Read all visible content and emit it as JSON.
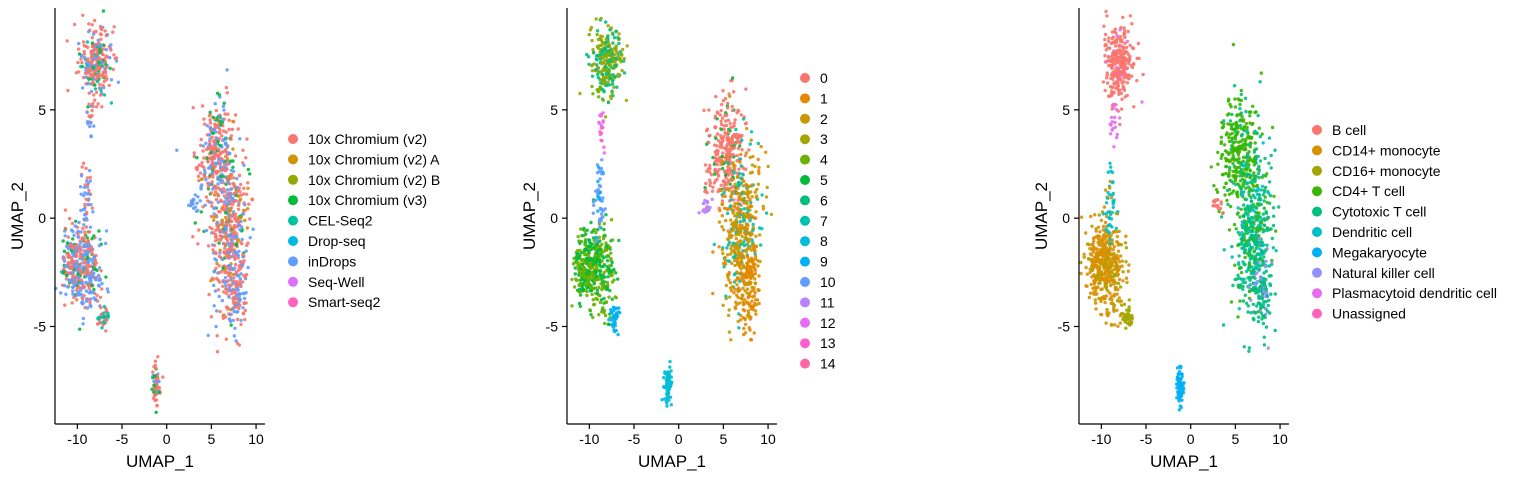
{
  "chart_data": [
    {
      "type": "scatter",
      "title": "",
      "xlabel": "UMAP_1",
      "ylabel": "UMAP_2",
      "xlim": [
        -12.5,
        11
      ],
      "ylim": [
        -9.5,
        9.7
      ],
      "xticks": [
        -10,
        -5,
        0,
        5,
        10
      ],
      "yticks": [
        -5,
        0,
        5
      ],
      "legend_position": "right",
      "colored_by": "sequencing technology",
      "series": [
        {
          "name": "10x Chromium (v2)",
          "color": "#F8766D"
        },
        {
          "name": "10x Chromium (v2) A",
          "color": "#D39200"
        },
        {
          "name": "10x Chromium (v2) B",
          "color": "#93AA00"
        },
        {
          "name": "10x Chromium (v3)",
          "color": "#00BA38"
        },
        {
          "name": "CEL-Seq2",
          "color": "#00C19F"
        },
        {
          "name": "Drop-seq",
          "color": "#00B9E3"
        },
        {
          "name": "inDrops",
          "color": "#619CFF"
        },
        {
          "name": "Seq-Well",
          "color": "#DB72FB"
        },
        {
          "name": "Smart-seq2",
          "color": "#FF61C3"
        }
      ]
    },
    {
      "type": "scatter",
      "title": "",
      "xlabel": "UMAP_1",
      "ylabel": "UMAP_2",
      "xlim": [
        -12.5,
        11
      ],
      "ylim": [
        -9.5,
        9.7
      ],
      "xticks": [
        -10,
        -5,
        0,
        5,
        10
      ],
      "yticks": [
        -5,
        0,
        5
      ],
      "legend_position": "right",
      "colored_by": "cluster",
      "series": [
        {
          "name": "0",
          "color": "#F8766D"
        },
        {
          "name": "1",
          "color": "#E58700"
        },
        {
          "name": "2",
          "color": "#C99800"
        },
        {
          "name": "3",
          "color": "#A3A500"
        },
        {
          "name": "4",
          "color": "#6BB100"
        },
        {
          "name": "5",
          "color": "#00BA38"
        },
        {
          "name": "6",
          "color": "#00BF7D"
        },
        {
          "name": "7",
          "color": "#00C0AF"
        },
        {
          "name": "8",
          "color": "#00BCD8"
        },
        {
          "name": "9",
          "color": "#00B0F6"
        },
        {
          "name": "10",
          "color": "#619CFF"
        },
        {
          "name": "11",
          "color": "#B983FF"
        },
        {
          "name": "12",
          "color": "#E76BF3"
        },
        {
          "name": "13",
          "color": "#FD61D1"
        },
        {
          "name": "14",
          "color": "#FF67A4"
        }
      ]
    },
    {
      "type": "scatter",
      "title": "",
      "xlabel": "UMAP_1",
      "ylabel": "UMAP_2",
      "xlim": [
        -12.5,
        11
      ],
      "ylim": [
        -9.5,
        9.7
      ],
      "xticks": [
        -10,
        -5,
        0,
        5,
        10
      ],
      "yticks": [
        -5,
        0,
        5
      ],
      "legend_position": "right",
      "colored_by": "cell type",
      "series": [
        {
          "name": "B cell",
          "color": "#F8766D"
        },
        {
          "name": "CD14+ monocyte",
          "color": "#D89000"
        },
        {
          "name": "CD16+ monocyte",
          "color": "#A3A500"
        },
        {
          "name": "CD4+ T cell",
          "color": "#39B600"
        },
        {
          "name": "Cytotoxic T cell",
          "color": "#00BF7D"
        },
        {
          "name": "Dendritic cell",
          "color": "#00BFC4"
        },
        {
          "name": "Megakaryocyte",
          "color": "#00B0F6"
        },
        {
          "name": "Natural killer cell",
          "color": "#9590FF"
        },
        {
          "name": "Plasmacytoid dendritic cell",
          "color": "#E76BF3"
        },
        {
          "name": "Unassigned",
          "color": "#FF62BC"
        }
      ]
    }
  ]
}
